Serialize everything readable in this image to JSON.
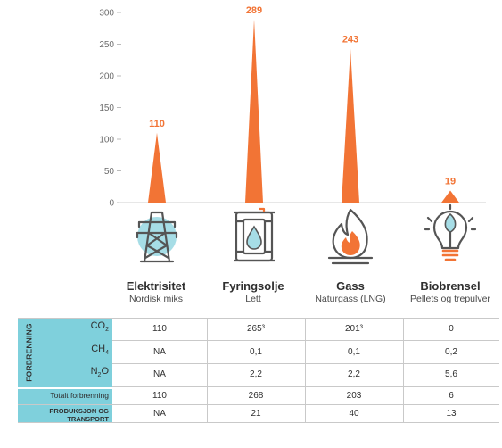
{
  "chart_data": {
    "type": "bar",
    "ylim": [
      0,
      300
    ],
    "yticks": [
      0,
      50,
      100,
      150,
      200,
      250,
      300
    ],
    "categories": [
      "Elektrisitet",
      "Fyringsolje",
      "Gass",
      "Biobrensel"
    ],
    "subtitles": [
      "Nordisk miks",
      "Lett",
      "Naturgass (LNG)",
      "Pellets og trepulver"
    ],
    "values": [
      110,
      289,
      243,
      19
    ],
    "data_labels": [
      "110",
      "289",
      "243",
      "19"
    ],
    "grid": false,
    "bar_color": "#f27435",
    "icon_circle_color": "#a6dde6",
    "icons": [
      "power-pylon-icon",
      "oil-barrel-icon",
      "gas-flame-icon",
      "lightbulb-leaf-icon"
    ]
  },
  "table": {
    "group_label": "FORBRENNING",
    "rows": [
      {
        "label": "CO",
        "sub": "2",
        "values": [
          "110",
          "265³",
          "201³",
          "0"
        ]
      },
      {
        "label": "CH",
        "sub": "4",
        "values": [
          "NA",
          "0,1",
          "0,1",
          "0,2"
        ]
      },
      {
        "label": "N",
        "sub": "2",
        "label_suffix": "O",
        "values": [
          "NA",
          "2,2",
          "2,2",
          "5,6"
        ]
      },
      {
        "label": "Totalt forbrenning",
        "values": [
          "110",
          "268",
          "203",
          "6"
        ]
      },
      {
        "label": "PRODUKSJON OG TRANSPORT",
        "values": [
          "NA",
          "21",
          "40",
          "13"
        ]
      }
    ]
  },
  "colors": {
    "accent": "#f27435",
    "band": "#7fd0dc",
    "icon_stroke": "#555555"
  }
}
